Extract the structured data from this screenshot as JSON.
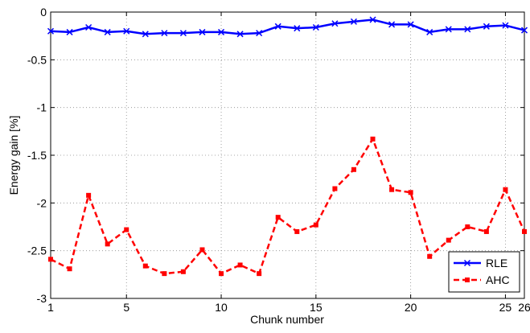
{
  "chart_data": {
    "type": "line",
    "title": "",
    "xlabel": "Chunk number",
    "ylabel": "Energy gain [%]",
    "xlim": [
      1,
      26
    ],
    "ylim": [
      -3,
      0
    ],
    "xticks": [
      1,
      5,
      10,
      15,
      20,
      25,
      26
    ],
    "yticks": [
      0,
      -0.5,
      -1,
      -1.5,
      -2,
      -2.5,
      -3
    ],
    "grid": true,
    "legend_position": "bottom-right",
    "x": [
      1,
      2,
      3,
      4,
      5,
      6,
      7,
      8,
      9,
      10,
      11,
      12,
      13,
      14,
      15,
      16,
      17,
      18,
      19,
      20,
      21,
      22,
      23,
      24,
      25,
      26
    ],
    "series": [
      {
        "name": "RLE",
        "color": "#0000ff",
        "line_style": "solid",
        "marker": "x",
        "values": [
          -0.2,
          -0.21,
          -0.16,
          -0.21,
          -0.2,
          -0.23,
          -0.22,
          -0.22,
          -0.21,
          -0.21,
          -0.23,
          -0.22,
          -0.15,
          -0.17,
          -0.16,
          -0.12,
          -0.1,
          -0.08,
          -0.13,
          -0.13,
          -0.21,
          -0.18,
          -0.18,
          -0.15,
          -0.14,
          -0.19
        ]
      },
      {
        "name": "AHC",
        "color": "#ff0000",
        "line_style": "dashed",
        "marker": "square",
        "values": [
          -2.59,
          -2.69,
          -1.92,
          -2.43,
          -2.28,
          -2.66,
          -2.74,
          -2.72,
          -2.49,
          -2.74,
          -2.65,
          -2.74,
          -2.15,
          -2.3,
          -2.23,
          -1.85,
          -1.65,
          -1.33,
          -1.86,
          -1.89,
          -2.56,
          -2.39,
          -2.25,
          -2.3,
          -1.86,
          -2.3
        ]
      }
    ]
  }
}
